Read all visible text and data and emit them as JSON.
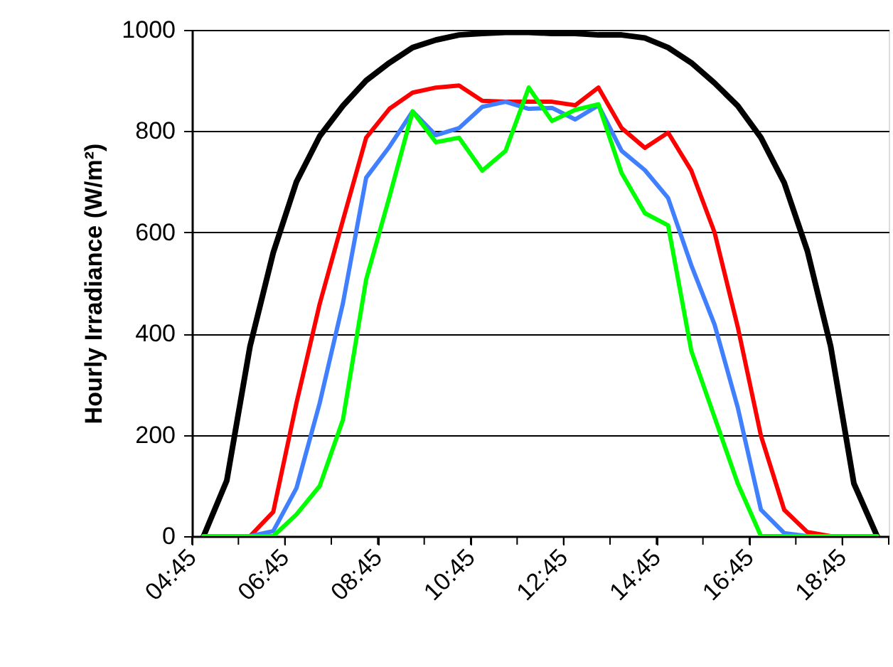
{
  "chart_data": {
    "type": "line",
    "ylabel": "Hourly Irradiance (W/m²)",
    "x": [
      5.0,
      5.5,
      6.0,
      6.5,
      7.0,
      7.5,
      8.0,
      8.5,
      9.0,
      9.5,
      10.0,
      10.5,
      11.0,
      11.5,
      12.0,
      12.5,
      13.0,
      13.5,
      14.0,
      14.5,
      15.0,
      15.5,
      16.0,
      16.5,
      17.0,
      17.5,
      18.0,
      18.5,
      19.0,
      19.5
    ],
    "series": [
      {
        "color": "#000000",
        "values": [
          0,
          110,
          375,
          560,
          700,
          790,
          850,
          900,
          935,
          965,
          980,
          990,
          993,
          995,
          995,
          993,
          993,
          990,
          990,
          984,
          965,
          935,
          895,
          850,
          787,
          698,
          563,
          375,
          104,
          0
        ]
      },
      {
        "color": "#ff0000",
        "values": [
          0,
          0,
          0,
          48,
          263,
          459,
          624,
          787,
          844,
          876,
          886,
          890,
          860,
          858,
          858,
          858,
          851,
          886,
          806,
          767,
          797,
          722,
          600,
          413,
          198,
          52,
          8,
          0,
          0,
          0
        ]
      },
      {
        "color": "#4080ff",
        "values": [
          0,
          0,
          0,
          10,
          95,
          263,
          460,
          708,
          769,
          839,
          792,
          806,
          848,
          858,
          844,
          846,
          823,
          851,
          761,
          723,
          668,
          535,
          418,
          254,
          52,
          6,
          0,
          0,
          null,
          null
        ]
      },
      {
        "color": "#00ff00",
        "values": [
          0,
          0,
          0,
          0,
          43,
          99,
          230,
          507,
          670,
          839,
          778,
          787,
          722,
          761,
          886,
          820,
          842,
          853,
          717,
          638,
          614,
          366,
          235,
          104,
          0,
          0,
          0,
          0,
          0,
          0
        ]
      }
    ],
    "xlim": [
      4.75,
      19.75
    ],
    "xticks": [
      {
        "value": 4.75,
        "label": "04:45"
      },
      {
        "value": 5.75,
        "label": null
      },
      {
        "value": 6.75,
        "label": "06:45"
      },
      {
        "value": 7.75,
        "label": null
      },
      {
        "value": 8.75,
        "label": "08:45"
      },
      {
        "value": 9.75,
        "label": null
      },
      {
        "value": 10.75,
        "label": "10:45"
      },
      {
        "value": 11.75,
        "label": null
      },
      {
        "value": 12.75,
        "label": "12:45"
      },
      {
        "value": 13.75,
        "label": null
      },
      {
        "value": 14.75,
        "label": "14:45"
      },
      {
        "value": 15.75,
        "label": null
      },
      {
        "value": 16.75,
        "label": "16:45"
      },
      {
        "value": 17.75,
        "label": null
      },
      {
        "value": 18.75,
        "label": "18:45"
      },
      {
        "value": 19.75,
        "label": null
      }
    ],
    "ylim": [
      0,
      1000
    ],
    "yticks": [
      0,
      200,
      400,
      600,
      800,
      1000
    ],
    "grid": "y",
    "marker": "none",
    "line_style": "solid"
  }
}
